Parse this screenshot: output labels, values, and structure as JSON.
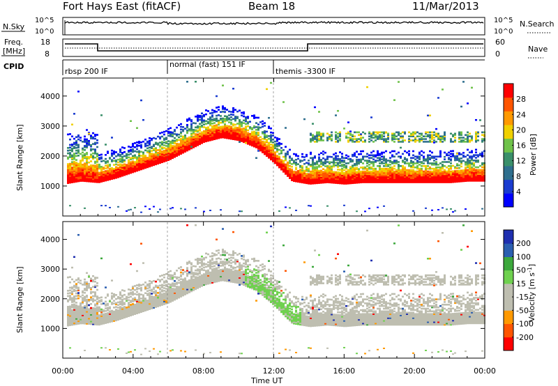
{
  "header": {
    "title": "Fort Hays East (fitACF)",
    "beam": "Beam 18",
    "date": "11/Mar/2013"
  },
  "top_panels": {
    "nsky_label": "N.Sky",
    "nsky_tick_top": "10^5",
    "nsky_tick_bottom": "10^0",
    "nsearch_tick_top": "10^5",
    "nsearch_tick_bottom": "10^0",
    "nsearch_label": "N.Search",
    "freq_label_line1": "Freq.",
    "freq_label_line2": "[MHz]",
    "freq_tick_top": "18",
    "freq_tick_bottom": "8",
    "nave_tick_top": "60",
    "nave_tick_bottom": "0",
    "nave_label": "Nave",
    "cpid_label": "CPID",
    "cpid_segments": [
      {
        "label": "rbsp 200 IF",
        "start_h": 0,
        "end_h": 6
      },
      {
        "label": "normal (fast) 151 IF",
        "start_h": 6,
        "end_h": 12
      },
      {
        "label": "themis -3300 IF",
        "start_h": 12,
        "end_h": 24
      }
    ]
  },
  "colors": {
    "power_scale": [
      "#0000ff",
      "#1a3cd0",
      "#2f6f8e",
      "#3a8f6a",
      "#6fc24a",
      "#f0d000",
      "#ff9900",
      "#ff5500",
      "#ff0000"
    ],
    "velocity_scale": [
      "#ff0000",
      "#ff5500",
      "#ff9900",
      "#bebeb0",
      "#bebeb0",
      "#6fd14f",
      "#3ca83c",
      "#2b5fb0",
      "#1f2fb0"
    ]
  },
  "chart_data": [
    {
      "type": "heatmap",
      "title": "Power",
      "ylabel": "Slant Range [km]",
      "xlabel": "Time UT",
      "xlim_hours": [
        0,
        24
      ],
      "ylim": [
        0,
        4600
      ],
      "x_ticks": [
        "00:00",
        "04:00",
        "08:00",
        "12:00",
        "16:00",
        "20:00",
        "00:00"
      ],
      "y_ticks": [
        "1000",
        "2000",
        "3000",
        "4000"
      ],
      "colorbar": {
        "label": "Power [dB]",
        "ticks": [
          "4",
          "8",
          "12",
          "16",
          "20",
          "24",
          "28"
        ],
        "range": [
          0,
          30
        ]
      },
      "series": [
        {
          "name": "main band lower edge",
          "x_hours": [
            0,
            1,
            2,
            3,
            4,
            5,
            6,
            7,
            8,
            9,
            10,
            11,
            12,
            13,
            14,
            15,
            16,
            17,
            18,
            19,
            20,
            21,
            22,
            23,
            24
          ],
          "range_km": [
            1200,
            1300,
            1250,
            1400,
            1600,
            1800,
            2000,
            2300,
            2600,
            2750,
            2650,
            2400,
            1900,
            1300,
            1200,
            1250,
            1200,
            1250,
            1250,
            1250,
            1250,
            1250,
            1250,
            1300,
            1300
          ]
        }
      ]
    },
    {
      "type": "heatmap",
      "title": "Velocity",
      "ylabel": "Slant Range [km]",
      "xlabel": "Time UT",
      "xlim_hours": [
        0,
        24
      ],
      "ylim": [
        0,
        4600
      ],
      "x_ticks": [
        "00:00",
        "04:00",
        "08:00",
        "12:00",
        "16:00",
        "20:00",
        "00:00"
      ],
      "y_ticks": [
        "1000",
        "2000",
        "3000",
        "4000"
      ],
      "colorbar": {
        "label": "Velocity [m s",
        "label_sup": "-1",
        "label_end": "]",
        "ticks": [
          "200",
          "100",
          "50",
          "15",
          "-15",
          "-50",
          "-100",
          "-200"
        ],
        "range": [
          -250,
          250
        ]
      }
    },
    {
      "type": "line",
      "title": "Freq.",
      "x_hours": [
        0,
        2,
        2,
        14,
        14,
        24
      ],
      "values_mhz": [
        14,
        14,
        11,
        11,
        14,
        14
      ]
    }
  ]
}
